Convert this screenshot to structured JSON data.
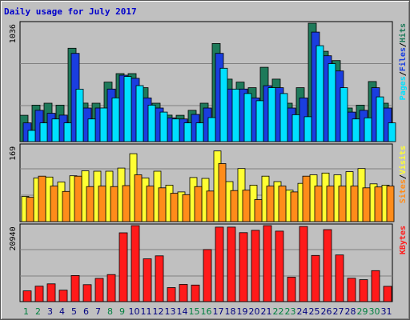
{
  "title": "Daily usage for July 2017",
  "colors": {
    "hits": "#1e7a5a",
    "files": "#1a3ee0",
    "pages": "#00e0ff",
    "visits": "#ffff33",
    "sites": "#ff8c1a",
    "kbytes": "#ff1a1a",
    "weekend_label": "#008040",
    "weekday_label": "#000080",
    "title": "#0000cc"
  },
  "chart_data": [
    {
      "type": "bar",
      "panel": "hits_files_pages",
      "ylabel_parts": [
        "Pages",
        "/",
        "Files",
        "/",
        "Hits"
      ],
      "ymax_label": "1036",
      "ylim": [
        0,
        1036
      ],
      "grid": true,
      "categories": [
        "1",
        "2",
        "3",
        "4",
        "5",
        "6",
        "7",
        "8",
        "9",
        "10",
        "11",
        "12",
        "13",
        "14",
        "15",
        "16",
        "17",
        "18",
        "19",
        "20",
        "21",
        "22",
        "23",
        "24",
        "25",
        "26",
        "27",
        "28",
        "29",
        "30",
        "31"
      ],
      "weekend_days": [
        1,
        2,
        8,
        9,
        15,
        16,
        22,
        23,
        29,
        30
      ],
      "series": [
        {
          "name": "Hits",
          "values": [
            230,
            319,
            336,
            319,
            817,
            337,
            336,
            521,
            595,
            595,
            472,
            336,
            232,
            230,
            274,
            336,
            858,
            547,
            521,
            472,
            650,
            547,
            336,
            472,
            1036,
            790,
            709,
            294,
            319,
            526,
            336
          ]
        },
        {
          "name": "Files",
          "values": [
            164,
            274,
            248,
            232,
            772,
            294,
            294,
            460,
            581,
            554,
            382,
            294,
            208,
            198,
            238,
            294,
            772,
            460,
            460,
            382,
            489,
            472,
            294,
            382,
            958,
            751,
            618,
            258,
            274,
            472,
            294
          ]
        },
        {
          "name": "Pages",
          "values": [
            98,
            164,
            198,
            164,
            459,
            198,
            294,
            382,
            570,
            490,
            319,
            258,
            198,
            164,
            164,
            210,
            642,
            459,
            421,
            358,
            472,
            421,
            235,
            218,
            839,
            682,
            472,
            198,
            208,
            391,
            164
          ]
        }
      ]
    },
    {
      "type": "bar",
      "panel": "visits_sites",
      "ylabel_parts": [
        "Sites",
        "/",
        "Visits"
      ],
      "ymax_label": "169",
      "ylim": [
        0,
        169
      ],
      "grid": true,
      "categories": [
        "1",
        "2",
        "3",
        "4",
        "5",
        "6",
        "7",
        "8",
        "9",
        "10",
        "11",
        "12",
        "13",
        "14",
        "15",
        "16",
        "17",
        "18",
        "19",
        "20",
        "21",
        "22",
        "23",
        "24",
        "25",
        "26",
        "27",
        "28",
        "29",
        "30",
        "31"
      ],
      "series": [
        {
          "name": "Visits",
          "values": [
            56,
            97,
            99,
            88,
            102,
            113,
            112,
            112,
            119,
            151,
            97,
            112,
            81,
            66,
            98,
            96,
            157,
            89,
            118,
            81,
            101,
            89,
            70,
            85,
            104,
            108,
            104,
            111,
            118,
            84,
            81
          ]
        },
        {
          "name": "Sites",
          "values": [
            54,
            101,
            79,
            67,
            101,
            78,
            79,
            78,
            80,
            104,
            79,
            75,
            63,
            60,
            78,
            68,
            129,
            69,
            70,
            49,
            79,
            79,
            66,
            101,
            79,
            79,
            79,
            79,
            75,
            77,
            79
          ]
        }
      ]
    },
    {
      "type": "bar",
      "panel": "kbytes",
      "ylabel_parts": [
        "KBytes"
      ],
      "ymax_label": "20940",
      "ylim": [
        0,
        20940
      ],
      "grid": true,
      "categories": [
        "1",
        "2",
        "3",
        "4",
        "5",
        "6",
        "7",
        "8",
        "9",
        "10",
        "11",
        "12",
        "13",
        "14",
        "15",
        "16",
        "17",
        "18",
        "19",
        "20",
        "21",
        "22",
        "23",
        "24",
        "25",
        "26",
        "27",
        "28",
        "29",
        "30",
        "31"
      ],
      "series": [
        {
          "name": "KBytes",
          "values": [
            2950,
            4260,
            4900,
            3150,
            7180,
            4680,
            6400,
            7450,
            18960,
            20940,
            11790,
            12600,
            3850,
            4750,
            4560,
            14340,
            20520,
            20520,
            19010,
            19640,
            20940,
            19410,
            6730,
            20700,
            12720,
            19840,
            12840,
            6430,
            6050,
            8520,
            4220
          ]
        }
      ]
    }
  ]
}
